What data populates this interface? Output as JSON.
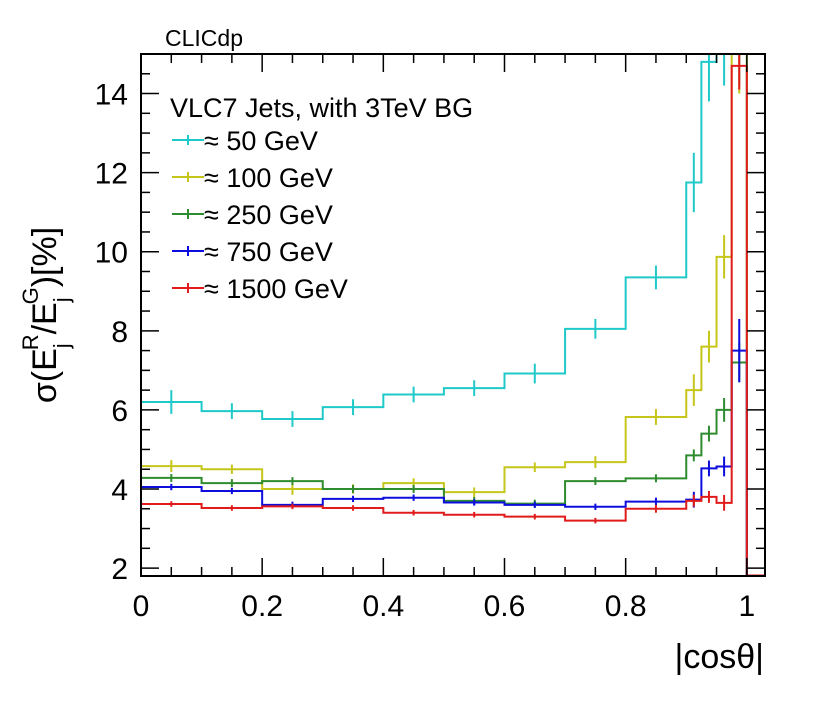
{
  "chart_data": {
    "type": "line",
    "label_top": "CLICdp",
    "legend_title": "VLC7 Jets, with 3TeV BG",
    "xlabel": "|cosθ|",
    "ylabel": "σ(E_j^R/E_j^G)[%]",
    "xlim": [
      0,
      1.03
    ],
    "ylim": [
      1.8,
      15
    ],
    "x_ticks": [
      0,
      0.2,
      0.4,
      0.6,
      0.8,
      1
    ],
    "x_tick_labels": [
      "0",
      "0.2",
      "0.4",
      "0.6",
      "0.8",
      "1"
    ],
    "y_ticks": [
      2,
      4,
      6,
      8,
      10,
      12,
      14
    ],
    "y_tick_labels": [
      "2",
      "4",
      "6",
      "8",
      "10",
      "12",
      "14"
    ],
    "bin_edges": [
      0,
      0.1,
      0.2,
      0.3,
      0.4,
      0.5,
      0.6,
      0.7,
      0.8,
      0.9,
      0.925,
      0.95,
      0.975,
      1.0
    ],
    "series": [
      {
        "name": "≈ 50 GeV",
        "color": "#1fc9c9",
        "values": [
          6.2,
          5.97,
          5.77,
          6.07,
          6.39,
          6.55,
          6.92,
          8.05,
          9.35,
          11.75,
          14.8,
          15.2,
          15.2
        ],
        "errors": [
          0.3,
          0.2,
          0.2,
          0.2,
          0.2,
          0.2,
          0.25,
          0.25,
          0.3,
          0.75,
          1.0,
          1.0,
          1.0
        ]
      },
      {
        "name": "≈ 100 GeV",
        "color": "#c6c61a",
        "values": [
          4.58,
          4.5,
          4.0,
          4.0,
          4.15,
          3.92,
          4.55,
          4.68,
          5.82,
          6.5,
          7.6,
          9.87,
          15.0
        ],
        "errors": [
          0.15,
          0.12,
          0.15,
          0.12,
          0.12,
          0.12,
          0.12,
          0.15,
          0.2,
          0.4,
          0.4,
          0.55,
          1.0
        ]
      },
      {
        "name": "≈ 250 GeV",
        "color": "#2e8b2e",
        "values": [
          4.28,
          4.15,
          4.2,
          4.0,
          4.0,
          3.7,
          3.63,
          4.2,
          4.27,
          4.85,
          5.4,
          6.0,
          7.2
        ],
        "errors": [
          0.1,
          0.1,
          0.1,
          0.1,
          0.1,
          0.1,
          0.1,
          0.1,
          0.1,
          0.15,
          0.2,
          0.3,
          0.5
        ]
      },
      {
        "name": "≈ 750 GeV",
        "color": "#0d0ddd",
        "values": [
          4.05,
          3.95,
          3.6,
          3.75,
          3.78,
          3.66,
          3.6,
          3.55,
          3.68,
          3.73,
          4.52,
          4.57,
          7.5
        ],
        "errors": [
          0.08,
          0.08,
          0.08,
          0.08,
          0.08,
          0.08,
          0.08,
          0.08,
          0.1,
          0.2,
          0.2,
          0.25,
          0.8
        ]
      },
      {
        "name": "≈ 1500 GeV",
        "color": "#e11b1b",
        "values": [
          3.62,
          3.52,
          3.56,
          3.52,
          3.4,
          3.35,
          3.3,
          3.2,
          3.5,
          3.7,
          3.8,
          3.65,
          14.7
        ],
        "errors": [
          0.07,
          0.07,
          0.07,
          0.07,
          0.07,
          0.07,
          0.07,
          0.07,
          0.1,
          0.15,
          0.15,
          0.2,
          0.6
        ]
      }
    ]
  }
}
